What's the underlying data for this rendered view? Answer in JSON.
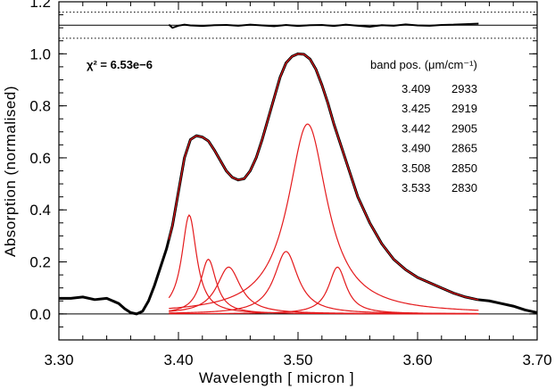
{
  "chart_data": {
    "type": "line",
    "title": "",
    "xlabel": "Wavelength [ micron ]",
    "ylabel": "Absorption (normalised)",
    "xlim": [
      3.3,
      3.7
    ],
    "ylim": [
      -0.1,
      1.2
    ],
    "x_ticks": [
      "3.30",
      "3.40",
      "3.50",
      "3.60",
      "3.70"
    ],
    "y_ticks": [
      "0.0",
      "0.2",
      "0.4",
      "0.6",
      "0.8",
      "1.0",
      "1.2"
    ],
    "x_tick_values": [
      3.3,
      3.4,
      3.5,
      3.6,
      3.7
    ],
    "y_tick_values": [
      0.0,
      0.2,
      0.4,
      0.6,
      0.8,
      1.0,
      1.2
    ],
    "grid": false,
    "chi2": {
      "label": "χ² = 6.53e−6"
    },
    "band_table": {
      "header": "band pos. (μm/cm⁻¹)",
      "rows": [
        {
          "micron": "3.409",
          "wavenumber": "2933"
        },
        {
          "micron": "3.425",
          "wavenumber": "2919"
        },
        {
          "micron": "3.442",
          "wavenumber": "2905"
        },
        {
          "micron": "3.490",
          "wavenumber": "2865"
        },
        {
          "micron": "3.508",
          "wavenumber": "2850"
        },
        {
          "micron": "3.533",
          "wavenumber": "2830"
        }
      ]
    },
    "reference_lines": {
      "zero": 0.0,
      "residual_center": 1.11,
      "residual_bounds": [
        1.06,
        1.16
      ]
    },
    "observed": {
      "color": "#000000",
      "x": [
        3.3,
        3.31,
        3.32,
        3.33,
        3.34,
        3.35,
        3.355,
        3.36,
        3.365,
        3.37,
        3.375,
        3.38,
        3.385,
        3.39,
        3.395,
        3.4,
        3.405,
        3.41,
        3.415,
        3.42,
        3.425,
        3.43,
        3.435,
        3.44,
        3.445,
        3.45,
        3.455,
        3.46,
        3.465,
        3.47,
        3.475,
        3.48,
        3.485,
        3.49,
        3.495,
        3.5,
        3.505,
        3.51,
        3.515,
        3.52,
        3.525,
        3.53,
        3.54,
        3.55,
        3.56,
        3.57,
        3.58,
        3.59,
        3.6,
        3.61,
        3.62,
        3.63,
        3.64,
        3.65,
        3.66,
        3.67,
        3.68,
        3.69,
        3.7
      ],
      "y": [
        0.06,
        0.06,
        0.065,
        0.055,
        0.06,
        0.04,
        0.02,
        0.005,
        0.0,
        0.01,
        0.05,
        0.11,
        0.18,
        0.25,
        0.34,
        0.47,
        0.6,
        0.67,
        0.685,
        0.68,
        0.665,
        0.63,
        0.59,
        0.55,
        0.525,
        0.515,
        0.52,
        0.55,
        0.6,
        0.67,
        0.75,
        0.83,
        0.91,
        0.965,
        0.99,
        1.0,
        0.998,
        0.98,
        0.94,
        0.88,
        0.81,
        0.73,
        0.59,
        0.45,
        0.35,
        0.27,
        0.21,
        0.17,
        0.14,
        0.12,
        0.1,
        0.08,
        0.065,
        0.055,
        0.05,
        0.04,
        0.03,
        0.015,
        0.005
      ]
    },
    "fit_total": {
      "color": "#e41a1c",
      "x_range": [
        3.392,
        3.651
      ]
    },
    "components": {
      "color": "#e41a1c",
      "x_range": [
        3.392,
        3.651
      ],
      "profiles": [
        {
          "center": 3.409,
          "amplitude": 0.38,
          "hwhm": 0.0075
        },
        {
          "center": 3.425,
          "amplitude": 0.21,
          "hwhm": 0.008
        },
        {
          "center": 3.442,
          "amplitude": 0.18,
          "hwhm": 0.012
        },
        {
          "center": 3.49,
          "amplitude": 0.24,
          "hwhm": 0.012
        },
        {
          "center": 3.508,
          "amplitude": 0.73,
          "hwhm": 0.02
        },
        {
          "center": 3.533,
          "amplitude": 0.18,
          "hwhm": 0.009
        }
      ]
    },
    "residual": {
      "color": "#000000",
      "x": [
        3.392,
        3.395,
        3.4,
        3.405,
        3.41,
        3.42,
        3.43,
        3.44,
        3.45,
        3.46,
        3.47,
        3.48,
        3.49,
        3.5,
        3.51,
        3.52,
        3.53,
        3.54,
        3.55,
        3.56,
        3.57,
        3.58,
        3.59,
        3.6,
        3.61,
        3.62,
        3.63,
        3.64,
        3.651
      ],
      "y": [
        1.112,
        1.1,
        1.108,
        1.112,
        1.109,
        1.107,
        1.11,
        1.111,
        1.108,
        1.112,
        1.109,
        1.106,
        1.111,
        1.107,
        1.11,
        1.111,
        1.107,
        1.112,
        1.108,
        1.104,
        1.11,
        1.108,
        1.113,
        1.109,
        1.108,
        1.111,
        1.112,
        1.114,
        1.116
      ]
    }
  }
}
